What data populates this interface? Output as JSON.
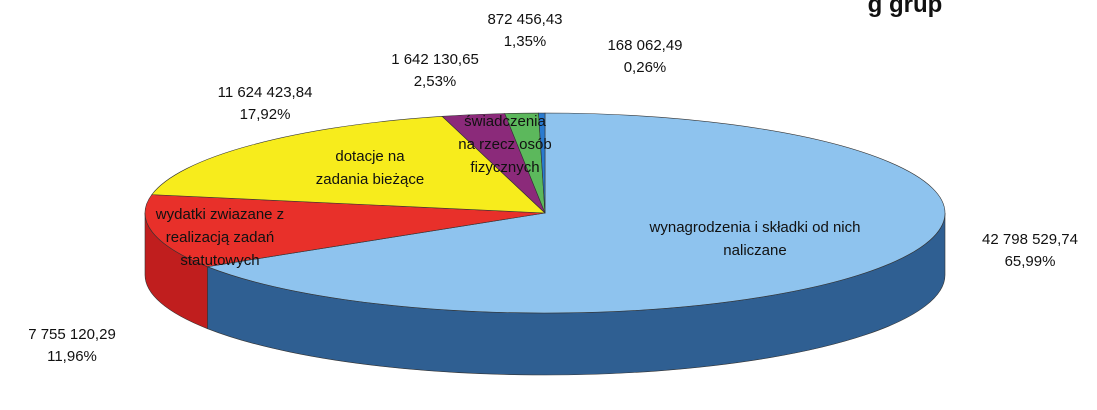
{
  "chart_data": {
    "type": "pie",
    "title": "g grup",
    "categories": [
      "wynagrodzenia i składki od nich naliczane",
      "wydatki zwiazane z realizacją zadań statutowych",
      "dotacje na zadania bieżące",
      "świadczenia na rzecz osób fizycznych",
      null,
      null
    ],
    "values": [
      42798529.74,
      7755120.29,
      11624423.84,
      1642130.65,
      872456.43,
      168062.49
    ],
    "value_labels": [
      "42 798 529,74",
      "7 755 120,29",
      "11 624 423,84",
      "1 642 130,65",
      "872 456,43",
      "168 062,49"
    ],
    "percentages": [
      65.99,
      11.96,
      17.92,
      2.53,
      1.35,
      0.26
    ],
    "percentage_labels": [
      "65,99%",
      "11,96%",
      "17,92%",
      "2,53%",
      "1,35%",
      "0,26%"
    ],
    "colors": [
      "#8ec3ee",
      "#e8302a",
      "#f7ec1c",
      "#8b2a7a",
      "#5cb85c",
      "#2a7bd0"
    ],
    "side_colors": [
      "#2f5f92",
      "#c01e1e",
      "#c9b90e",
      "#5e1a52",
      "#3a8a3a",
      "#1d5aa0"
    ]
  }
}
